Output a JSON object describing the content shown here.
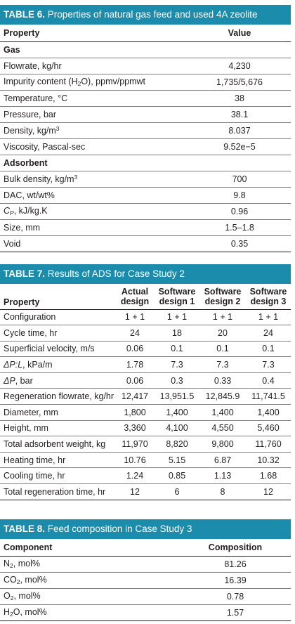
{
  "table6": {
    "label": "TABLE 6.",
    "title": "Properties of natural gas feed and used 4A zeolite",
    "headers": [
      "Property",
      "Value"
    ],
    "sections": [
      {
        "name": "Gas",
        "rows": [
          [
            "Flowrate, kg/hr",
            "4,230"
          ],
          [
            "Impurity content (H2O), ppmv/ppmwt",
            "1,735/5,676"
          ],
          [
            "Temperature, °C",
            "38"
          ],
          [
            "Pressure, bar",
            "38.1"
          ],
          [
            "Density, kg/m3",
            "8.037"
          ],
          [
            "Viscosity, Pascal-sec",
            "9.52e−5"
          ]
        ]
      },
      {
        "name": "Adsorbent",
        "rows": [
          [
            "Bulk density, kg/m3",
            "700"
          ],
          [
            "DAC, wt/wt%",
            "9.8"
          ],
          [
            "CP, kJ/kg.K",
            "0.96"
          ],
          [
            "Size, mm",
            "1.5–1.8"
          ],
          [
            "Void",
            "0.35"
          ]
        ]
      }
    ]
  },
  "table7": {
    "label": "TABLE 7.",
    "title": "Results of ADS for Case Study 2",
    "headers": {
      "property": "Property",
      "cols": [
        [
          "Actual",
          "design"
        ],
        [
          "Software",
          "design 1"
        ],
        [
          "Software",
          "design 2"
        ],
        [
          "Software",
          "design 3"
        ]
      ]
    },
    "rows": [
      [
        "Configuration",
        "1 + 1",
        "1 + 1",
        "1 + 1",
        "1 + 1"
      ],
      [
        "Cycle time, hr",
        "24",
        "18",
        "20",
        "24"
      ],
      [
        "Superficial velocity, m/s",
        "0.06",
        "0.1",
        "0.1",
        "0.1"
      ],
      [
        "ΔP:L, kPa/m",
        "1.78",
        "7.3",
        "7.3",
        "7.3"
      ],
      [
        "ΔP, bar",
        "0.06",
        "0.3",
        "0.33",
        "0.4"
      ],
      [
        "Regeneration flowrate, kg/hr",
        "12,417",
        "13,951.5",
        "12,845.9",
        "11,741.5"
      ],
      [
        "Diameter, mm",
        "1,800",
        "1,400",
        "1,400",
        "1,400"
      ],
      [
        "Height, mm",
        "3,360",
        "4,100",
        "4,550",
        "5,460"
      ],
      [
        "Total adsorbent weight, kg",
        "11,970",
        "8,820",
        "9,800",
        "11,760"
      ],
      [
        "Heating time, hr",
        "10.76",
        "5.15",
        "6.87",
        "10.32"
      ],
      [
        "Cooling time, hr",
        "1.24",
        "0.85",
        "1.13",
        "1.68"
      ],
      [
        "Total regeneration time, hr",
        "12",
        "6",
        "8",
        "12"
      ]
    ]
  },
  "table8": {
    "label": "TABLE 8.",
    "title": "Feed composition in Case Study 3",
    "headers": [
      "Component",
      "Composition"
    ],
    "rows": [
      [
        "N2, mol%",
        "81.26"
      ],
      [
        "CO2, mol%",
        "16.39"
      ],
      [
        "O2, mol%",
        "0.78"
      ],
      [
        "H2O, mol%",
        "1.57"
      ]
    ]
  },
  "colors": {
    "title_bar": "#1b8cab",
    "title_text": "#ffffff",
    "rule": "#7f7f7f",
    "text": "#231f20"
  }
}
